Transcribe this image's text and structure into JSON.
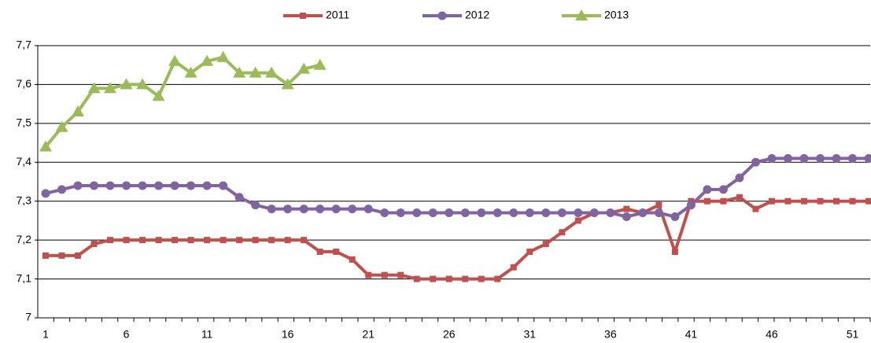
{
  "chart_data": {
    "type": "line",
    "categories": [
      1,
      null,
      null,
      null,
      null,
      6,
      null,
      null,
      null,
      null,
      11,
      null,
      null,
      null,
      null,
      16,
      null,
      null,
      null,
      null,
      21,
      null,
      null,
      null,
      null,
      26,
      null,
      null,
      null,
      null,
      31,
      null,
      null,
      null,
      null,
      36,
      null,
      null,
      null,
      null,
      41,
      null,
      null,
      null,
      null,
      46,
      null,
      null,
      null,
      null,
      51,
      null
    ],
    "series": [
      {
        "name": "2011",
        "color": "#c0504d",
        "marker": "square",
        "values": [
          7.16,
          7.16,
          7.16,
          7.19,
          7.2,
          7.2,
          7.2,
          7.2,
          7.2,
          7.2,
          7.2,
          7.2,
          7.2,
          7.2,
          7.2,
          7.2,
          7.2,
          7.17,
          7.17,
          7.15,
          7.11,
          7.11,
          7.11,
          7.1,
          7.1,
          7.1,
          7.1,
          7.1,
          7.1,
          7.13,
          7.17,
          7.19,
          7.22,
          7.25,
          7.27,
          7.27,
          7.28,
          7.27,
          7.29,
          7.17,
          7.3,
          7.3,
          7.3,
          7.31,
          7.28,
          7.3,
          7.3,
          7.3,
          7.3,
          7.3,
          7.3,
          7.3
        ]
      },
      {
        "name": "2012",
        "color": "#8064a2",
        "marker": "circle",
        "values": [
          7.32,
          7.33,
          7.34,
          7.34,
          7.34,
          7.34,
          7.34,
          7.34,
          7.34,
          7.34,
          7.34,
          7.34,
          7.31,
          7.29,
          7.28,
          7.28,
          7.28,
          7.28,
          7.28,
          7.28,
          7.28,
          7.27,
          7.27,
          7.27,
          7.27,
          7.27,
          7.27,
          7.27,
          7.27,
          7.27,
          7.27,
          7.27,
          7.27,
          7.27,
          7.27,
          7.27,
          7.26,
          7.27,
          7.27,
          7.26,
          7.29,
          7.33,
          7.33,
          7.36,
          7.4,
          7.41,
          7.41,
          7.41,
          7.41,
          7.41,
          7.41,
          7.41
        ]
      },
      {
        "name": "2013",
        "color": "#9bbb59",
        "marker": "triangle",
        "values": [
          7.44,
          7.49,
          7.53,
          7.59,
          7.59,
          7.6,
          7.6,
          7.57,
          7.66,
          7.63,
          7.66,
          7.67,
          7.63,
          7.63,
          7.63,
          7.6,
          7.64,
          7.65,
          null,
          null,
          null,
          null,
          null,
          null,
          null,
          null,
          null,
          null,
          null,
          null,
          null,
          null,
          null,
          null,
          null,
          null,
          null,
          null,
          null,
          null,
          null,
          null,
          null,
          null,
          null,
          null,
          null,
          null,
          null,
          null,
          null,
          null
        ]
      }
    ],
    "ylim": [
      7,
      7.7
    ],
    "yticks": [
      7,
      {
        "value": 7.1,
        "label": "7,1"
      },
      {
        "value": 7.2,
        "label": "7,2"
      },
      {
        "value": 7.3,
        "label": "7,3"
      },
      {
        "value": 7.4,
        "label": "7,4"
      },
      {
        "value": 7.5,
        "label": "7,5"
      },
      {
        "value": 7.6,
        "label": "7,6"
      },
      {
        "value": 7.7,
        "label": "7,7"
      }
    ],
    "grid": true,
    "legend": "top"
  }
}
